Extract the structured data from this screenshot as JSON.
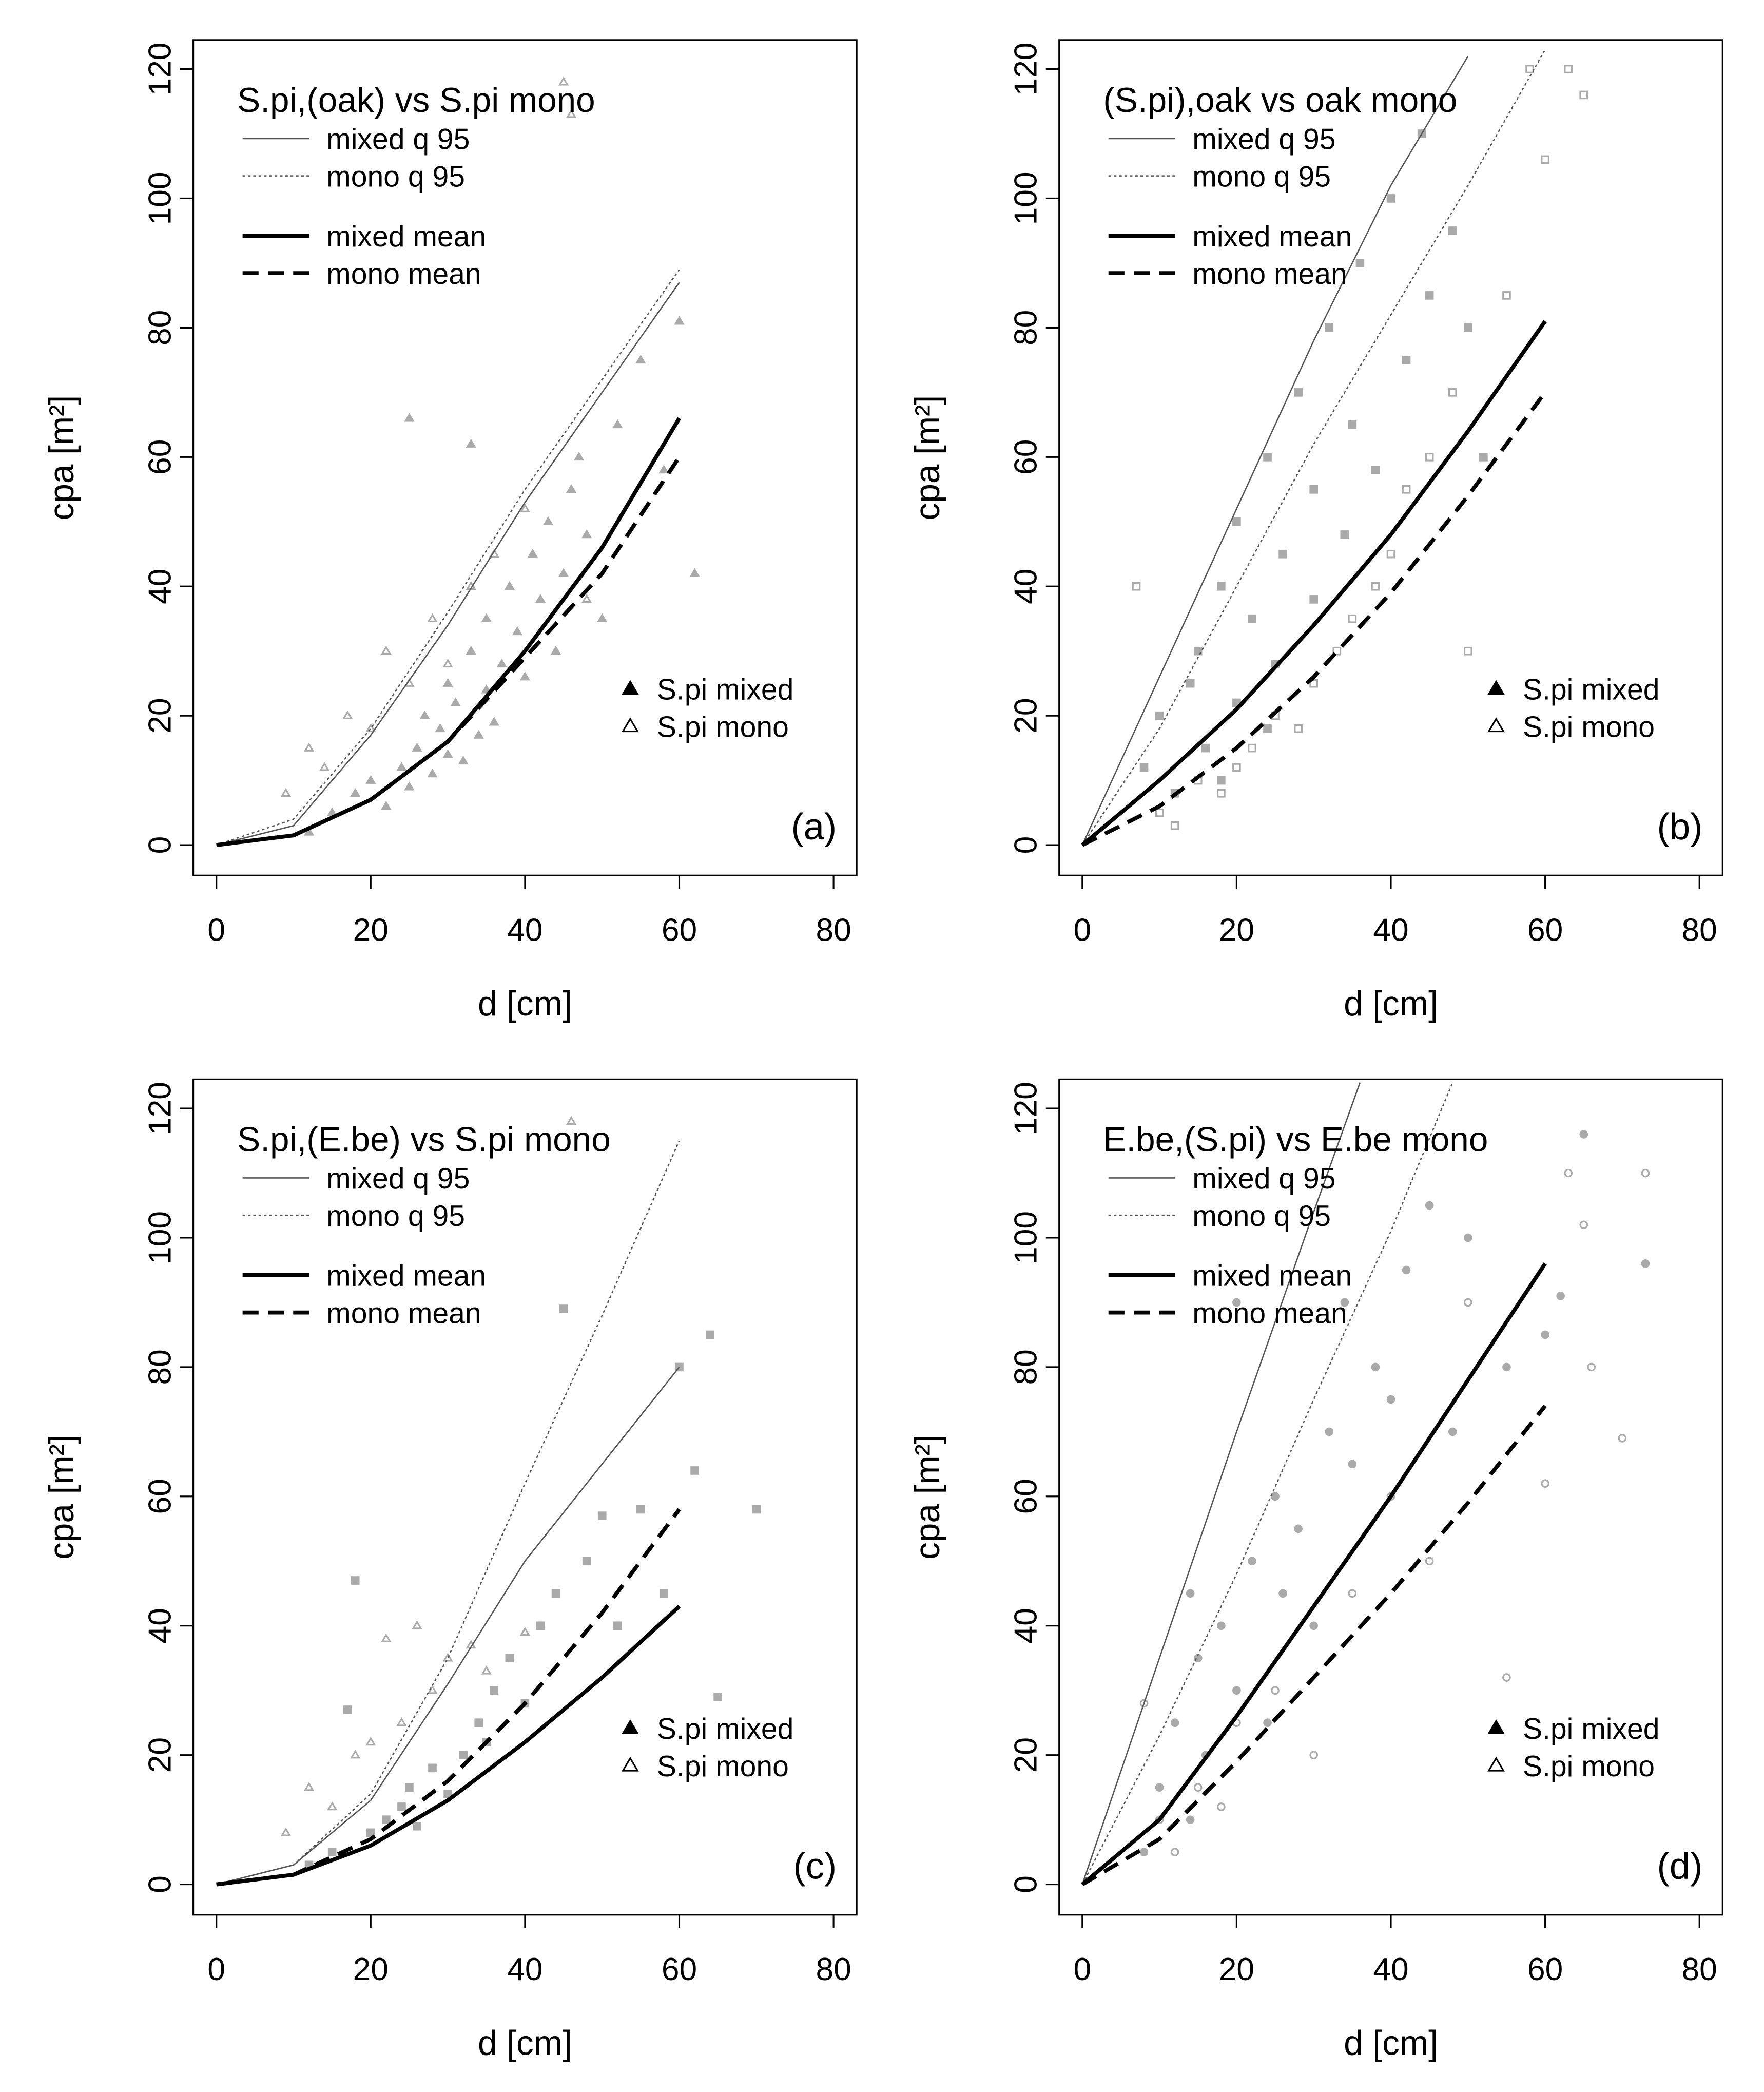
{
  "chart_data": [
    {
      "type": "scatter",
      "title": "S.pi,(oak) vs S.pi mono",
      "label": "(a)",
      "xlabel": "d [cm]",
      "ylabel": "cpa [m²]",
      "xlim": [
        -3,
        83
      ],
      "ylim": [
        -4.7,
        124.5
      ],
      "xticks": [
        0,
        20,
        40,
        60,
        80
      ],
      "yticks": [
        0,
        20,
        40,
        60,
        80,
        100,
        120
      ],
      "series": [
        {
          "name": "mixed q 95",
          "mode": "line",
          "linestyle": "solid",
          "linewidth": 1,
          "color": "#555555",
          "x": [
            0,
            10,
            20,
            30,
            40,
            50,
            60
          ],
          "values": [
            0,
            3,
            17,
            34,
            53,
            70,
            87
          ]
        },
        {
          "name": "mono q 95",
          "mode": "line",
          "linestyle": "dotted",
          "linewidth": 1,
          "color": "#555555",
          "x": [
            0,
            10,
            20,
            30,
            40,
            50,
            60
          ],
          "values": [
            0,
            4,
            18,
            36,
            55,
            72,
            89
          ]
        },
        {
          "name": "mixed mean",
          "mode": "line",
          "linestyle": "solid",
          "linewidth": 3,
          "color": "#000000",
          "x": [
            0,
            10,
            20,
            30,
            40,
            50,
            60
          ],
          "values": [
            0,
            1.5,
            7,
            16,
            30,
            46,
            66
          ]
        },
        {
          "name": "mono mean",
          "mode": "line",
          "linestyle": "dashed",
          "linewidth": 3,
          "color": "#000000",
          "x": [
            0,
            10,
            20,
            30,
            40,
            50,
            60
          ],
          "values": [
            0,
            1.5,
            7,
            16,
            29,
            42,
            60
          ]
        },
        {
          "name": "S.pi mixed",
          "mode": "points",
          "marker": "triangle",
          "filled": true,
          "color": "#aaaaaa",
          "x": [
            12,
            15,
            18,
            20,
            22,
            24,
            25,
            26,
            27,
            28,
            29,
            30,
            30,
            31,
            32,
            33,
            34,
            35,
            35,
            36,
            37,
            38,
            39,
            40,
            41,
            42,
            43,
            44,
            45,
            46,
            47,
            48,
            50,
            52,
            55,
            58,
            60,
            62,
            25,
            33
          ],
          "values": [
            2,
            5,
            8,
            10,
            6,
            12,
            9,
            15,
            20,
            11,
            18,
            14,
            25,
            22,
            13,
            30,
            17,
            24,
            35,
            19,
            28,
            40,
            33,
            26,
            45,
            38,
            50,
            30,
            42,
            55,
            60,
            48,
            35,
            65,
            75,
            58,
            81,
            42,
            66,
            62
          ]
        },
        {
          "name": "S.pi mono",
          "mode": "points",
          "marker": "triangle",
          "filled": false,
          "color": "#aaaaaa",
          "x": [
            9,
            12,
            14,
            17,
            20,
            22,
            25,
            28,
            30,
            33,
            36,
            40,
            45,
            46,
            48
          ],
          "values": [
            8,
            15,
            12,
            20,
            18,
            30,
            25,
            35,
            28,
            40,
            45,
            52,
            118,
            113,
            38
          ]
        }
      ]
    },
    {
      "type": "scatter",
      "title": "(S.pi),oak vs oak mono",
      "label": "(b)",
      "xlabel": "d [cm]",
      "ylabel": "cpa [m²]",
      "xlim": [
        -3,
        83
      ],
      "ylim": [
        -4.7,
        124.5
      ],
      "xticks": [
        0,
        20,
        40,
        60,
        80
      ],
      "yticks": [
        0,
        20,
        40,
        60,
        80,
        100,
        120
      ],
      "series": [
        {
          "name": "mixed q 95",
          "mode": "line",
          "linestyle": "solid",
          "linewidth": 1,
          "color": "#555555",
          "x": [
            0,
            10,
            20,
            30,
            40,
            50
          ],
          "values": [
            0,
            26,
            52,
            78,
            102,
            122
          ]
        },
        {
          "name": "mono q 95",
          "mode": "line",
          "linestyle": "dotted",
          "linewidth": 1,
          "color": "#555555",
          "x": [
            0,
            10,
            20,
            30,
            40,
            50,
            60
          ],
          "values": [
            0,
            18,
            40,
            62,
            82,
            102,
            123
          ]
        },
        {
          "name": "mixed mean",
          "mode": "line",
          "linestyle": "solid",
          "linewidth": 3,
          "color": "#000000",
          "x": [
            0,
            10,
            20,
            30,
            40,
            50,
            60
          ],
          "values": [
            0,
            10,
            21,
            34,
            48,
            64,
            81
          ]
        },
        {
          "name": "mono mean",
          "mode": "line",
          "linestyle": "dashed",
          "linewidth": 3,
          "color": "#000000",
          "x": [
            0,
            10,
            20,
            30,
            40,
            50,
            60
          ],
          "values": [
            0,
            6,
            15,
            26,
            39,
            54,
            70
          ]
        },
        {
          "name": "S.pi mixed",
          "mode": "points",
          "marker": "square",
          "filled": true,
          "color": "#aaaaaa",
          "x": [
            8,
            10,
            12,
            14,
            15,
            16,
            18,
            20,
            20,
            22,
            24,
            25,
            26,
            28,
            30,
            30,
            32,
            34,
            35,
            36,
            38,
            40,
            42,
            44,
            45,
            48,
            50,
            52,
            24,
            18
          ],
          "values": [
            12,
            20,
            8,
            25,
            30,
            15,
            40,
            22,
            50,
            35,
            60,
            28,
            45,
            70,
            38,
            55,
            80,
            48,
            65,
            90,
            58,
            100,
            75,
            110,
            85,
            95,
            80,
            60,
            18,
            10
          ]
        },
        {
          "name": "S.pi mono",
          "mode": "points",
          "marker": "square",
          "filled": false,
          "color": "#aaaaaa",
          "x": [
            7,
            10,
            12,
            15,
            18,
            20,
            22,
            25,
            28,
            30,
            33,
            35,
            38,
            40,
            42,
            45,
            48,
            50,
            55,
            58,
            60,
            63,
            65
          ],
          "values": [
            40,
            5,
            3,
            10,
            8,
            12,
            15,
            20,
            18,
            25,
            30,
            35,
            40,
            45,
            55,
            60,
            70,
            30,
            85,
            120,
            106,
            120,
            116
          ]
        }
      ]
    },
    {
      "type": "scatter",
      "title": "S.pi,(E.be) vs S.pi mono",
      "label": "(c)",
      "xlabel": "d [cm]",
      "ylabel": "cpa [m²]",
      "xlim": [
        -3,
        83
      ],
      "ylim": [
        -4.7,
        124.5
      ],
      "xticks": [
        0,
        20,
        40,
        60,
        80
      ],
      "yticks": [
        0,
        20,
        40,
        60,
        80,
        100,
        120
      ],
      "series": [
        {
          "name": "mixed q 95",
          "mode": "line",
          "linestyle": "solid",
          "linewidth": 1,
          "color": "#555555",
          "x": [
            0,
            10,
            20,
            30,
            40,
            50,
            60
          ],
          "values": [
            0,
            3,
            13,
            31,
            50,
            65,
            80
          ]
        },
        {
          "name": "mono q 95",
          "mode": "line",
          "linestyle": "dotted",
          "linewidth": 1,
          "color": "#555555",
          "x": [
            0,
            10,
            20,
            30,
            40,
            50,
            60
          ],
          "values": [
            0,
            3,
            14,
            35,
            62,
            88,
            115
          ]
        },
        {
          "name": "mixed mean",
          "mode": "line",
          "linestyle": "solid",
          "linewidth": 3,
          "color": "#000000",
          "x": [
            0,
            10,
            20,
            30,
            40,
            50,
            60
          ],
          "values": [
            0,
            1.5,
            6,
            13,
            22,
            32,
            43
          ]
        },
        {
          "name": "mono mean",
          "mode": "line",
          "linestyle": "dashed",
          "linewidth": 3,
          "color": "#000000",
          "x": [
            0,
            10,
            20,
            30,
            40,
            50,
            60
          ],
          "values": [
            0,
            1.5,
            7,
            16,
            28,
            42,
            58
          ]
        },
        {
          "name": "S.pi mixed",
          "mode": "points",
          "marker": "square",
          "filled": true,
          "color": "#aaaaaa",
          "x": [
            12,
            15,
            17,
            18,
            20,
            22,
            24,
            25,
            26,
            28,
            30,
            32,
            34,
            35,
            36,
            38,
            40,
            42,
            44,
            45,
            48,
            50,
            52,
            55,
            58,
            60,
            62,
            64,
            65,
            70
          ],
          "values": [
            3,
            5,
            27,
            47,
            8,
            10,
            12,
            15,
            9,
            18,
            14,
            20,
            25,
            22,
            30,
            35,
            28,
            40,
            45,
            89,
            50,
            57,
            40,
            58,
            45,
            80,
            64,
            85,
            29,
            58
          ]
        },
        {
          "name": "S.pi mono",
          "mode": "points",
          "marker": "triangle",
          "filled": false,
          "color": "#aaaaaa",
          "x": [
            9,
            12,
            15,
            18,
            20,
            22,
            24,
            26,
            28,
            30,
            33,
            35,
            40,
            46
          ],
          "values": [
            8,
            15,
            12,
            20,
            22,
            38,
            25,
            40,
            30,
            35,
            37,
            33,
            39,
            118
          ]
        }
      ]
    },
    {
      "type": "scatter",
      "title": "E.be,(S.pi) vs E.be mono",
      "label": "(d)",
      "xlabel": "d [cm]",
      "ylabel": "cpa [m²]",
      "xlim": [
        -3,
        83
      ],
      "ylim": [
        -4.7,
        124.5
      ],
      "xticks": [
        0,
        20,
        40,
        60,
        80
      ],
      "yticks": [
        0,
        20,
        40,
        60,
        80,
        100,
        120
      ],
      "series": [
        {
          "name": "mixed q 95",
          "mode": "line",
          "linestyle": "solid",
          "linewidth": 1,
          "color": "#555555",
          "x": [
            0,
            10,
            20,
            30,
            36
          ],
          "values": [
            0,
            35,
            70,
            104,
            124
          ]
        },
        {
          "name": "mono q 95",
          "mode": "line",
          "linestyle": "dotted",
          "linewidth": 1,
          "color": "#555555",
          "x": [
            0,
            10,
            20,
            30,
            40,
            48
          ],
          "values": [
            0,
            23,
            48,
            75,
            101,
            124
          ]
        },
        {
          "name": "mixed mean",
          "mode": "line",
          "linestyle": "solid",
          "linewidth": 3,
          "color": "#000000",
          "x": [
            0,
            10,
            20,
            30,
            40,
            50,
            60
          ],
          "values": [
            0,
            10,
            26,
            43,
            60,
            78,
            96
          ]
        },
        {
          "name": "mono mean",
          "mode": "line",
          "linestyle": "dashed",
          "linewidth": 3,
          "color": "#000000",
          "x": [
            0,
            10,
            20,
            30,
            40,
            50,
            60
          ],
          "values": [
            0,
            7,
            19,
            32,
            45,
            59,
            74
          ]
        },
        {
          "name": "S.pi mixed",
          "mode": "points",
          "marker": "circle",
          "filled": true,
          "color": "#aaaaaa",
          "x": [
            8,
            10,
            12,
            14,
            15,
            16,
            18,
            20,
            22,
            24,
            25,
            26,
            28,
            30,
            32,
            34,
            35,
            38,
            40,
            42,
            45,
            48,
            50,
            55,
            60,
            62,
            65,
            73,
            14,
            20
          ],
          "values": [
            5,
            15,
            25,
            10,
            35,
            20,
            40,
            30,
            50,
            25,
            60,
            45,
            55,
            40,
            70,
            90,
            65,
            80,
            75,
            95,
            105,
            70,
            100,
            80,
            85,
            91,
            116,
            96,
            45,
            90
          ]
        },
        {
          "name": "S.pi mono",
          "mode": "points",
          "marker": "circle",
          "filled": false,
          "color": "#aaaaaa",
          "x": [
            8,
            10,
            12,
            15,
            18,
            20,
            25,
            30,
            35,
            40,
            45,
            50,
            55,
            60,
            63,
            65,
            66,
            70,
            73
          ],
          "values": [
            28,
            10,
            5,
            15,
            12,
            25,
            30,
            20,
            45,
            60,
            50,
            90,
            32,
            62,
            110,
            102,
            80,
            69,
            110
          ]
        }
      ]
    }
  ]
}
